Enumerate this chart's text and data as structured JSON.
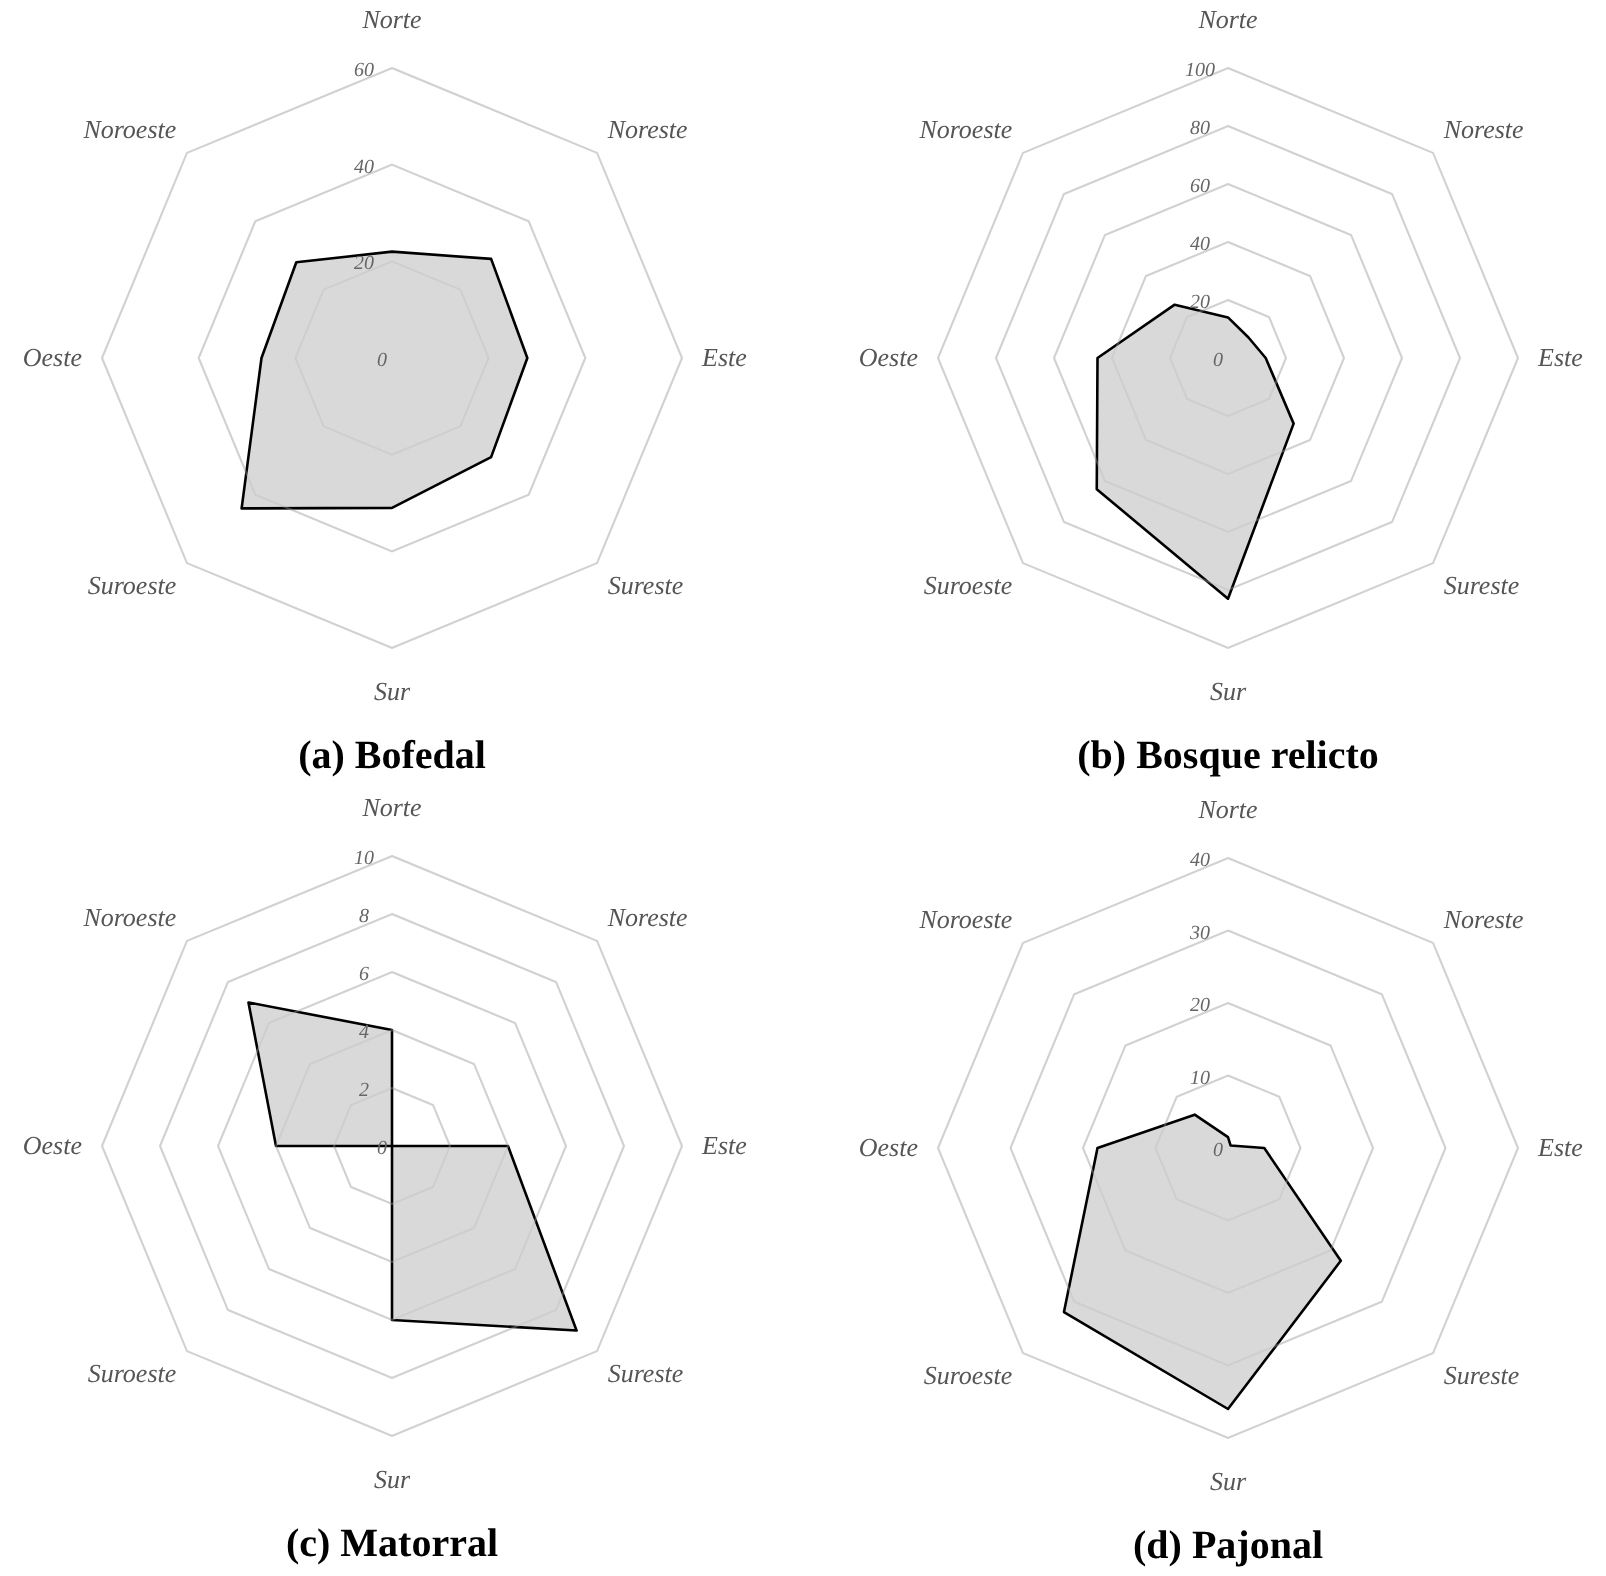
{
  "chart_data": [
    {
      "type": "radar",
      "title": "(a) Bofedal",
      "categories": [
        "Norte",
        "Noreste",
        "Este",
        "Sureste",
        "Sur",
        "Suroeste",
        "Oeste",
        "Noroeste"
      ],
      "ylim": [
        0,
        60
      ],
      "yticks": [
        0,
        20,
        40,
        60
      ],
      "grid": true,
      "series": [
        {
          "color": "#d9d9d9",
          "values": [
            22,
            29,
            28,
            29,
            31,
            44,
            27,
            28
          ]
        }
      ]
    },
    {
      "type": "radar",
      "title": "(b) Bosque relicto",
      "categories": [
        "Norte",
        "Noreste",
        "Este",
        "Sureste",
        "Sur",
        "Suroeste",
        "Oeste",
        "Noroeste"
      ],
      "ylim": [
        0,
        100
      ],
      "yticks": [
        0,
        20,
        40,
        60,
        80,
        100
      ],
      "grid": true,
      "series": [
        {
          "color": "#d9d9d9",
          "values": [
            14,
            10,
            13,
            32,
            83,
            64,
            45,
            26
          ]
        }
      ]
    },
    {
      "type": "radar",
      "title": "(c) Matorral",
      "categories": [
        "Norte",
        "Noreste",
        "Este",
        "Sureste",
        "Sur",
        "Suroeste",
        "Oeste",
        "Noroeste"
      ],
      "ylim": [
        0,
        10
      ],
      "yticks": [
        0,
        2,
        4,
        6,
        8,
        10
      ],
      "grid": true,
      "series": [
        {
          "color": "#d9d9d9",
          "values": [
            4,
            0,
            4,
            9,
            6,
            0,
            4,
            7
          ]
        }
      ]
    },
    {
      "type": "radar",
      "title": "(d) Pajonal",
      "categories": [
        "Norte",
        "Noreste",
        "Este",
        "Sureste",
        "Sur",
        "Suroeste",
        "Oeste",
        "Noroeste"
      ],
      "ylim": [
        0,
        40
      ],
      "yticks": [
        0,
        10,
        20,
        30,
        40
      ],
      "grid": true,
      "series": [
        {
          "color": "#d9d9d9",
          "values": [
            1.5,
            0.5,
            5,
            22,
            36,
            32,
            18,
            6.5
          ]
        }
      ]
    }
  ]
}
